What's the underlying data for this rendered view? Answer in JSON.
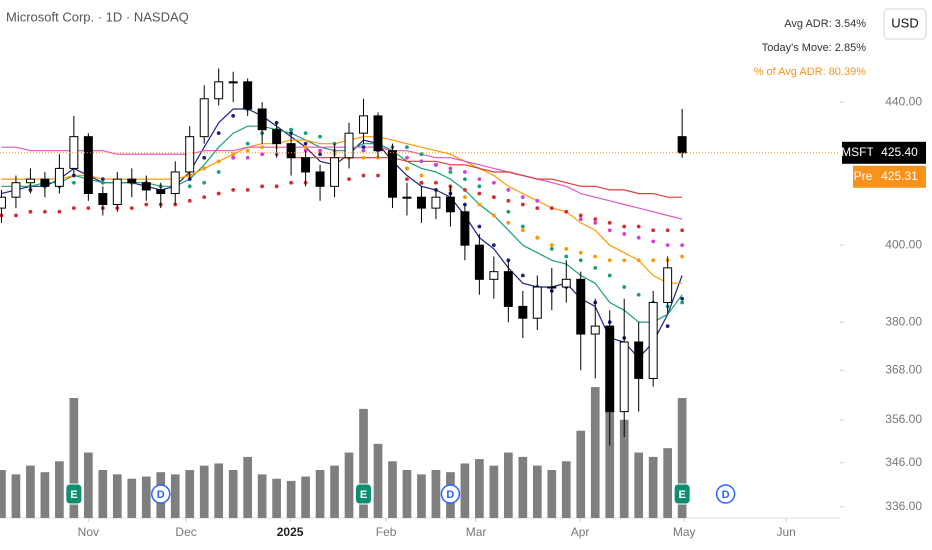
{
  "chart_data": {
    "type": "candlestick",
    "title": "Microsoft Corp. · 1D · NASDAQ",
    "stats": [
      {
        "text": "Avg ADR: 3.54%",
        "color": "#333333"
      },
      {
        "text": "Today's Move: 2.85%",
        "color": "#333333"
      },
      {
        "text": "% of Avg ADR: 80.39%",
        "color": "#f7931a"
      }
    ],
    "currency": "USD",
    "symbol": "MSFT",
    "last_price": {
      "value": 425.4,
      "label": "425.40",
      "color": "#f7931a"
    },
    "premarket": {
      "name": "Pre",
      "value": 425.31,
      "color": "#f7931a"
    },
    "log_scale": true,
    "ylim": [
      333.5,
      471
    ],
    "yticks": [
      {
        "value": 336,
        "label": "336.00"
      },
      {
        "value": 346,
        "label": "346.00"
      },
      {
        "value": 356,
        "label": "356.00"
      },
      {
        "value": 368,
        "label": "368.00"
      },
      {
        "value": 380,
        "label": "380.00"
      },
      {
        "value": 400,
        "label": "400.00"
      },
      {
        "value": 440,
        "label": "440.00"
      }
    ],
    "xlim": [
      -0.1,
      57.9
    ],
    "xticks": [
      {
        "value": 6,
        "label": "Nov"
      },
      {
        "value": 12.75,
        "label": "Dec"
      },
      {
        "value": 19.93,
        "label": "2025",
        "bold": true
      },
      {
        "value": 26.56,
        "label": "Feb"
      },
      {
        "value": 32.77,
        "label": "Mar"
      },
      {
        "value": 39.95,
        "label": "Apr"
      },
      {
        "value": 47.14,
        "label": "May"
      },
      {
        "value": 54.18,
        "label": "Jun"
      }
    ],
    "up_color": "#ffffff",
    "down_color": "#000000",
    "open": [
      410,
      413,
      417,
      418,
      416,
      421,
      430,
      414,
      411,
      418,
      417,
      415,
      414,
      420,
      430,
      441,
      446,
      446,
      438,
      432,
      428,
      424,
      420,
      416,
      424,
      431,
      436,
      426,
      413,
      413,
      410,
      413,
      409,
      400,
      391,
      393,
      384,
      381,
      389,
      389,
      391,
      377,
      379,
      358,
      375,
      366,
      385,
      430
    ],
    "close": [
      413,
      417,
      418,
      416,
      421,
      430,
      414,
      411,
      418,
      417,
      415,
      414,
      420,
      430,
      441,
      446,
      446,
      438,
      432,
      428,
      424,
      420,
      416,
      424,
      431,
      436,
      426,
      413,
      413,
      410,
      413,
      409,
      400,
      391,
      393,
      384,
      381,
      389,
      389,
      391,
      377,
      379,
      358,
      375,
      366,
      385,
      394,
      425.4
    ],
    "high": [
      415,
      419,
      421,
      420,
      425,
      436,
      431,
      416,
      420,
      421,
      419,
      417,
      423,
      433,
      445,
      450,
      449,
      447,
      440,
      434,
      431,
      426,
      422,
      428,
      434,
      441,
      437,
      428,
      417,
      416,
      415,
      416,
      411,
      403,
      397,
      396,
      388,
      392,
      394,
      396,
      393,
      386,
      383,
      386,
      380,
      388,
      397,
      438
    ],
    "low": [
      406,
      410,
      414,
      413,
      414,
      419,
      412,
      408,
      409,
      413,
      412,
      410,
      411,
      418,
      428,
      439,
      440,
      436,
      428,
      424,
      419,
      416,
      412,
      413,
      421,
      428,
      424,
      410,
      408,
      406,
      407,
      405,
      396,
      387,
      386,
      380,
      376,
      378,
      383,
      385,
      368,
      366,
      350,
      352,
      358,
      364,
      382,
      424
    ],
    "volume": [
      22,
      20,
      24,
      21,
      26,
      55,
      30,
      22,
      20,
      18,
      19,
      21,
      20,
      22,
      24,
      25,
      22,
      28,
      20,
      18,
      17,
      19,
      22,
      24,
      30,
      50,
      34,
      26,
      22,
      20,
      22,
      21,
      25,
      27,
      24,
      30,
      28,
      24,
      22,
      26,
      40,
      60,
      58,
      45,
      30,
      28,
      32,
      55
    ],
    "volume_lim": [
      0,
      110
    ],
    "volume_color": "#7f7f7f",
    "series": [
      {
        "color": "#1a237e",
        "style": "solid",
        "values": [
          414,
          415,
          416,
          416,
          418,
          421,
          419,
          417,
          417,
          417,
          416,
          415,
          416,
          420,
          427,
          434,
          438,
          438,
          436,
          433,
          430,
          427,
          423,
          422,
          425,
          429,
          428,
          423,
          419,
          416,
          415,
          413,
          408,
          402,
          399,
          394,
          390,
          389,
          389,
          390,
          386,
          384,
          376,
          375,
          371,
          375,
          382,
          392
        ]
      },
      {
        "color": "#1a9e7a",
        "style": "solid",
        "values": [
          416,
          416,
          416,
          417,
          417,
          419,
          418,
          417,
          417,
          417,
          417,
          416,
          416,
          418,
          422,
          427,
          431,
          433,
          433,
          432,
          431,
          429,
          427,
          426,
          426,
          428,
          428,
          426,
          423,
          421,
          420,
          418,
          415,
          411,
          408,
          404,
          400,
          398,
          396,
          395,
          392,
          390,
          385,
          383,
          380,
          380,
          382,
          387
        ]
      },
      {
        "color": "#ff9800",
        "style": "solid",
        "values": [
          418,
          418,
          418,
          418,
          418,
          419,
          419,
          418,
          418,
          418,
          418,
          418,
          418,
          419,
          421,
          423,
          425,
          427,
          428,
          428,
          429,
          429,
          428,
          428,
          429,
          430,
          430,
          429,
          428,
          427,
          426,
          425,
          423,
          421,
          419,
          416,
          414,
          412,
          410,
          409,
          406,
          404,
          400,
          398,
          396,
          392,
          390,
          390
        ]
      },
      {
        "color": "#e254c9",
        "style": "solid",
        "values": [
          427,
          427,
          426,
          426,
          426,
          426,
          426,
          426,
          425,
          425,
          425,
          425,
          425,
          425,
          426,
          426,
          426,
          427,
          427,
          427,
          427,
          427,
          427,
          427,
          427,
          427,
          427,
          426,
          426,
          425,
          424,
          424,
          423,
          422,
          421,
          420,
          419,
          418,
          417,
          416,
          414,
          413,
          412,
          411,
          410,
          409,
          408,
          407
        ]
      },
      {
        "color": "#e53935",
        "style": "solid",
        "values": [
          null,
          null,
          null,
          null,
          null,
          null,
          null,
          null,
          null,
          null,
          null,
          null,
          null,
          null,
          null,
          null,
          null,
          null,
          null,
          null,
          424,
          424,
          424,
          424,
          424,
          424,
          424,
          424,
          423,
          423,
          423,
          422,
          422,
          421,
          420,
          420,
          419,
          418,
          418,
          417,
          416,
          416,
          415,
          415,
          414,
          414,
          413,
          413
        ]
      },
      {
        "color": "#1a237e",
        "style": "dotted",
        "values": [
          null,
          414,
          415,
          416,
          417,
          419,
          420,
          418,
          417,
          417,
          416,
          416,
          415,
          418,
          424,
          431,
          436,
          438,
          437,
          434,
          431,
          428,
          425,
          422,
          424,
          427,
          429,
          425,
          421,
          417,
          415,
          414,
          411,
          405,
          400,
          396,
          392,
          389,
          388,
          389,
          388,
          385,
          380,
          376,
          373,
          374,
          379,
          386
        ]
      },
      {
        "color": "#1a9e7a",
        "style": "dotted",
        "values": [
          null,
          null,
          416,
          416,
          416,
          417,
          417,
          417,
          417,
          417,
          417,
          416,
          416,
          416,
          417,
          420,
          424,
          428,
          431,
          432,
          432,
          431,
          430,
          428,
          427,
          426,
          426,
          427,
          427,
          425,
          422,
          420,
          418,
          416,
          413,
          409,
          405,
          402,
          399,
          397,
          396,
          394,
          392,
          389,
          387,
          385,
          384,
          385
        ]
      },
      {
        "color": "#ff9800",
        "style": "dotted",
        "values": [
          null,
          null,
          null,
          null,
          null,
          null,
          null,
          null,
          null,
          null,
          null,
          null,
          418,
          419,
          421,
          423,
          425,
          426,
          427,
          427,
          427,
          427,
          426,
          425,
          424,
          424,
          424,
          423,
          421,
          419,
          417,
          415,
          413,
          411,
          408,
          406,
          404,
          402,
          400,
          399,
          398,
          397,
          396,
          396,
          396,
          396,
          396,
          397
        ]
      },
      {
        "color": "#d63fd6",
        "style": "dotted",
        "values": [
          null,
          null,
          null,
          null,
          null,
          null,
          null,
          null,
          null,
          null,
          null,
          null,
          null,
          null,
          null,
          null,
          424,
          424,
          425,
          425,
          425,
          426,
          426,
          426,
          426,
          426,
          426,
          425,
          424,
          423,
          422,
          421,
          420,
          418,
          417,
          415,
          413,
          412,
          410,
          409,
          407,
          406,
          404,
          403,
          402,
          401,
          400,
          400
        ]
      },
      {
        "color": "#d32f2f",
        "style": "dotted",
        "values": [
          408,
          408,
          409,
          409,
          409,
          410,
          410,
          410,
          410,
          410,
          411,
          411,
          411,
          412,
          413,
          414,
          415,
          415,
          416,
          416,
          417,
          417,
          417,
          418,
          418,
          419,
          419,
          418,
          418,
          417,
          417,
          416,
          415,
          414,
          413,
          412,
          411,
          410,
          410,
          409,
          408,
          407,
          406,
          405,
          405,
          404,
          404,
          404
        ]
      }
    ],
    "events": [
      {
        "label": "E",
        "at": 5
      },
      {
        "label": "D",
        "at": 11
      },
      {
        "label": "E",
        "at": 25
      },
      {
        "label": "D",
        "at": 31
      },
      {
        "label": "E",
        "at": 47
      },
      {
        "label": "D",
        "at": 50
      }
    ]
  }
}
